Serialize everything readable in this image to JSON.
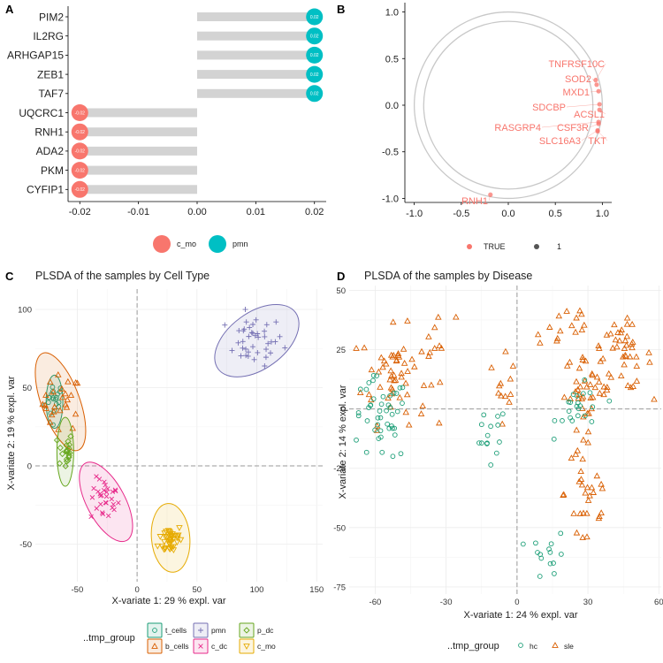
{
  "panel_letters": [
    "A",
    "B",
    "C",
    "D"
  ],
  "colors": {
    "c_mo_dot": "#F8766D",
    "pmn_dot": "#00BFC4",
    "bar": "#D3D3D3",
    "corr_point": "#F8766D",
    "circle": "#C8C8C8",
    "t_cells": "#1B9E77",
    "b_cells": "#D95F02",
    "pmn": "#7570B3",
    "c_dc": "#E7298A",
    "p_dc": "#66A61E",
    "c_mo": "#E6AB02",
    "hc": "#1B9E77",
    "sle": "#D95F02"
  },
  "chart_data": [
    {
      "panel": "A",
      "type": "bar",
      "orientation": "horizontal",
      "categories": [
        "PIM2",
        "IL2RG",
        "ARHGAP15",
        "ZEB1",
        "TAF7",
        "UQCRC1",
        "RNH1",
        "ADA2",
        "PKM",
        "CYFIP1"
      ],
      "values": [
        0.02,
        0.02,
        0.02,
        0.02,
        0.02,
        -0.02,
        -0.02,
        -0.02,
        -0.02,
        -0.02
      ],
      "point_labels": [
        "0.02",
        "0.02",
        "0.02",
        "0.02",
        "0.02",
        "-0.02",
        "-0.02",
        "-0.02",
        "-0.02",
        "-0.02"
      ],
      "groups": [
        "pmn",
        "pmn",
        "pmn",
        "pmn",
        "pmn",
        "c_mo",
        "c_mo",
        "c_mo",
        "c_mo",
        "c_mo"
      ],
      "xlim": [
        -0.022,
        0.022
      ],
      "xticks": [
        -0.02,
        -0.01,
        0.0,
        0.01,
        0.02
      ],
      "xtick_labels": [
        "-0.02",
        "-0.01",
        "0.00",
        "0.01",
        "0.02"
      ],
      "legend": [
        {
          "name": "c_mo"
        },
        {
          "name": "pmn"
        }
      ],
      "legend_position": "bottom"
    },
    {
      "panel": "B",
      "type": "scatter",
      "subtype": "correlation-circle",
      "circles": [
        1.0,
        0.9
      ],
      "points": [
        {
          "label": "TNFRSF10C",
          "x": 0.93,
          "y": 0.27
        },
        {
          "label": "SOD2",
          "x": 0.94,
          "y": 0.22
        },
        {
          "label": "MXD1",
          "x": 0.96,
          "y": 0.15
        },
        {
          "label": "SDCBP",
          "x": 0.97,
          "y": 0.01
        },
        {
          "label": "ACSL1",
          "x": 0.97,
          "y": -0.05
        },
        {
          "label": "RASGRP4",
          "x": 0.96,
          "y": -0.18
        },
        {
          "label": "CSF3R",
          "x": 0.96,
          "y": -0.2
        },
        {
          "label": "SLC16A3",
          "x": 0.95,
          "y": -0.27
        },
        {
          "label": "TKT",
          "x": 0.95,
          "y": -0.28
        },
        {
          "label": "RNH1",
          "x": -0.19,
          "y": -0.96
        }
      ],
      "xlim": [
        -1.1,
        1.1
      ],
      "ylim": [
        -1.1,
        1.1
      ],
      "xticks": [
        -1.0,
        -0.5,
        0.0,
        0.5,
        1.0
      ],
      "xtick_labels": [
        "-1.0",
        "-0.5",
        "0.0",
        "0.5",
        "1.0"
      ],
      "yticks": [
        -1.0,
        -0.5,
        0.0,
        0.5,
        1.0
      ],
      "ytick_labels": [
        "-1.0",
        "-0.5",
        "0.0",
        "0.5",
        "1.0"
      ],
      "legend": [
        {
          "name": "TRUE"
        },
        {
          "name": "1"
        }
      ],
      "legend_position": "bottom"
    },
    {
      "panel": "C",
      "type": "scatter",
      "title": "PLSDA of the samples by Cell Type",
      "xlabel": "X-variate 1: 29 % expl. var",
      "ylabel": "X-variate 2: 19 % expl. var",
      "xlim": [
        -85,
        155
      ],
      "ylim": [
        -74,
        113
      ],
      "xticks": [
        -50,
        0,
        50,
        100,
        150
      ],
      "xtick_labels": [
        "-50",
        "0",
        "50",
        "100",
        "150"
      ],
      "yticks": [
        -50,
        0,
        50,
        100
      ],
      "ytick_labels": [
        "-50",
        "0",
        "50",
        "100"
      ],
      "grid": true,
      "legend_title": "..tmp_group",
      "legend_position": "bottom",
      "series": [
        {
          "name": "t_cells",
          "marker": "circle",
          "center": [
            -69,
            42
          ],
          "spread": [
            4,
            6
          ],
          "count": 20,
          "ellipse": {
            "center": [
              -69,
              41
            ],
            "rx": 7,
            "ry": 17,
            "angle_deg": 0
          }
        },
        {
          "name": "b_cells",
          "marker": "triangle",
          "center": [
            -63,
            40
          ],
          "spread": [
            8,
            9
          ],
          "count": 25,
          "ellipse": {
            "center": [
              -64,
              41
            ],
            "rx": 16,
            "ry": 33,
            "angle_deg": 20
          }
        },
        {
          "name": "pmn",
          "marker": "plus",
          "center": [
            98,
            80
          ],
          "spread": [
            12,
            8
          ],
          "count": 40,
          "ellipse": {
            "center": [
              100,
              80
            ],
            "rx": 40,
            "ry": 18,
            "angle_deg": 36
          }
        },
        {
          "name": "c_dc",
          "marker": "x",
          "center": [
            -27,
            -22
          ],
          "spread": [
            6,
            7
          ],
          "count": 30,
          "ellipse": {
            "center": [
              -26,
              -23
            ],
            "rx": 16,
            "ry": 28,
            "angle_deg": 28
          }
        },
        {
          "name": "p_dc",
          "marker": "diamond",
          "center": [
            -60,
            10
          ],
          "spread": [
            3,
            6
          ],
          "count": 20,
          "ellipse": {
            "center": [
              -60,
              9
            ],
            "rx": 7,
            "ry": 22,
            "angle_deg": 0
          }
        },
        {
          "name": "c_mo",
          "marker": "triangle-down",
          "center": [
            28,
            -47
          ],
          "spread": [
            5,
            5
          ],
          "count": 40,
          "ellipse": {
            "center": [
              28,
              -46
            ],
            "rx": 16,
            "ry": 22,
            "angle_deg": 5
          }
        }
      ]
    },
    {
      "panel": "D",
      "type": "scatter",
      "title": "PLSDA of the samples by Disease",
      "xlabel": "X-variate 1: 24 % expl. var",
      "ylabel": "X-variate 2: 14 % expl. var",
      "xlim": [
        -71,
        61
      ],
      "ylim": [
        -78,
        52
      ],
      "xticks": [
        -60,
        -30,
        0,
        30,
        60
      ],
      "xtick_labels": [
        "-60",
        "-30",
        "0",
        "30",
        "60"
      ],
      "yticks": [
        -75,
        -50,
        -25,
        0,
        25,
        50
      ],
      "ytick_labels": [
        "-75",
        "-50",
        "-25",
        "0",
        "25",
        "50"
      ],
      "grid": true,
      "legend_title": "..tmp_group",
      "legend_position": "bottom",
      "series": [
        {
          "name": "hc",
          "marker": "circle",
          "clusters": [
            {
              "center": [
                -58,
                -5
              ],
              "spread": [
                6,
                9
              ],
              "count": 45
            },
            {
              "center": [
                -12,
                -12
              ],
              "spread": [
                4,
                7
              ],
              "count": 14
            },
            {
              "center": [
                27,
                0
              ],
              "spread": [
                5,
                5
              ],
              "count": 22
            },
            {
              "center": [
                14,
                -62
              ],
              "spread": [
                4,
                5
              ],
              "count": 14
            }
          ]
        },
        {
          "name": "sle",
          "marker": "triangle",
          "clusters": [
            {
              "center": [
                -52,
                14
              ],
              "spread": [
                7,
                10
              ],
              "count": 55
            },
            {
              "center": [
                -34,
                30
              ],
              "spread": [
                4,
                5
              ],
              "count": 8
            },
            {
              "center": [
                -5,
                15
              ],
              "spread": [
                2,
                10
              ],
              "count": 12
            },
            {
              "center": [
                30,
                8
              ],
              "spread": [
                5,
                8
              ],
              "count": 40
            },
            {
              "center": [
                45,
                22
              ],
              "spread": [
                6,
                7
              ],
              "count": 40
            },
            {
              "center": [
                20,
                35
              ],
              "spread": [
                7,
                6
              ],
              "count": 15
            },
            {
              "center": [
                30,
                -35
              ],
              "spread": [
                5,
                17
              ],
              "count": 30
            }
          ]
        }
      ]
    }
  ]
}
